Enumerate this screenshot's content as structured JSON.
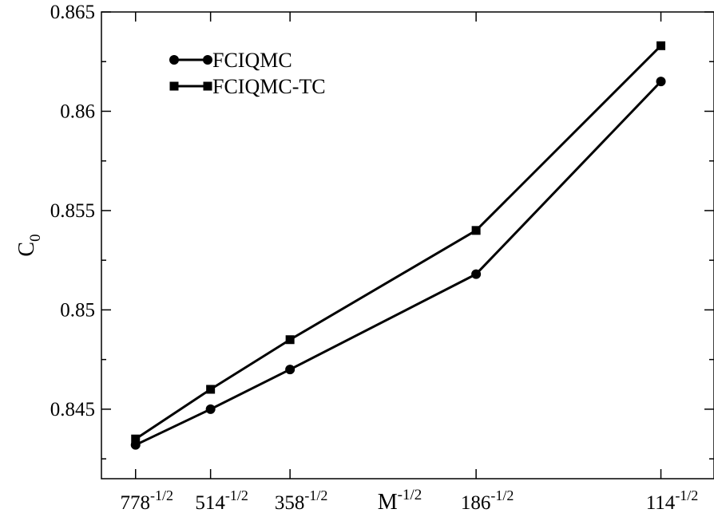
{
  "chart_data": {
    "type": "line",
    "xlabel": "M",
    "xlabel_sup": "-1/2",
    "ylabel": "C",
    "ylabel_sub": "0",
    "x_tick_labels": [
      {
        "base": "778",
        "sup": "-1/2",
        "x": 0.035856
      },
      {
        "base": "514",
        "sup": "-1/2",
        "x": 0.044108
      },
      {
        "base": "358",
        "sup": "-1/2",
        "x": 0.052851
      },
      {
        "base": "186",
        "sup": "-1/2",
        "x": 0.073324
      },
      {
        "base": "114",
        "sup": "-1/2",
        "x": 0.093659
      }
    ],
    "x": [
      0.035856,
      0.044108,
      0.052851,
      0.073324,
      0.093659
    ],
    "xlim": [
      0.0321,
      0.0995
    ],
    "ylim": [
      0.8415,
      0.865
    ],
    "y_ticks": [
      "0.845",
      "0.85",
      "0.855",
      "0.86",
      "0.865"
    ],
    "y_tick_values": [
      0.845,
      0.85,
      0.855,
      0.86,
      0.865
    ],
    "series": [
      {
        "name": "FCIQMC",
        "marker": "circle",
        "values": [
          0.8432,
          0.845,
          0.847,
          0.8518,
          0.8615
        ]
      },
      {
        "name": "FCIQMC-TC",
        "marker": "square",
        "values": [
          0.8435,
          0.846,
          0.8485,
          0.854,
          0.8633
        ]
      }
    ],
    "legend_position": "top-left",
    "grid": false
  }
}
